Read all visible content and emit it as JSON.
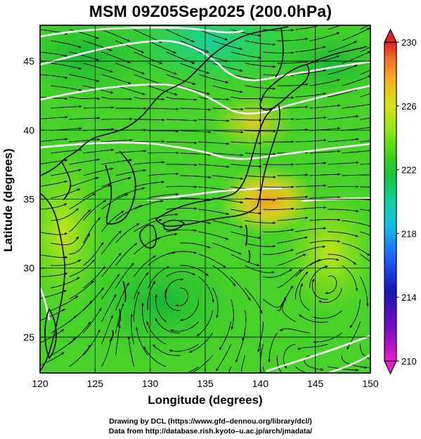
{
  "title": "MSM 09Z05Sep2025 (200.0hPa)",
  "xlabel": "Longitude (degrees)",
  "ylabel": "Latitude  (degrees)",
  "x_ticks": [
    "120",
    "125",
    "130",
    "135",
    "140",
    "145",
    "150"
  ],
  "y_ticks": [
    "25",
    "30",
    "35",
    "40",
    "45"
  ],
  "colorbar_ticks": [
    "230",
    "226",
    "222",
    "218",
    "214",
    "210"
  ],
  "credits": {
    "line1": "Drawing by DCL (https://www.gfd–dennou.org/library/dcl/)",
    "line2": "Data from http://database.rish.kyoto–u.ac.jp/arch/jmadata/"
  },
  "chart_data": {
    "type": "heatmap",
    "title": "MSM 09Z05Sep2025 (200.0hPa)",
    "xlabel": "Longitude (degrees)",
    "ylabel": "Latitude  (degrees)",
    "xlim": [
      120,
      150
    ],
    "ylim": [
      22.4,
      47.6
    ],
    "x_ticks": [
      120,
      125,
      130,
      135,
      140,
      145,
      150
    ],
    "y_ticks": [
      25,
      30,
      35,
      40,
      45
    ],
    "grid": true,
    "colorbar": {
      "range": [
        210,
        230
      ],
      "ticks": [
        210,
        214,
        218,
        222,
        226,
        230
      ],
      "colors": [
        "#e81ec8",
        "#7a0fc4",
        "#1414b4",
        "#1e64ff",
        "#12bce6",
        "#10d2a0",
        "#14c83c",
        "#3cd21c",
        "#8ce614",
        "#d2e614",
        "#f5b41e",
        "#f06e28",
        "#e61e1e"
      ],
      "position": "right"
    },
    "overlays": [
      "streamlines",
      "white temperature contours",
      "coastlines",
      "lat/lon grid"
    ]
  }
}
